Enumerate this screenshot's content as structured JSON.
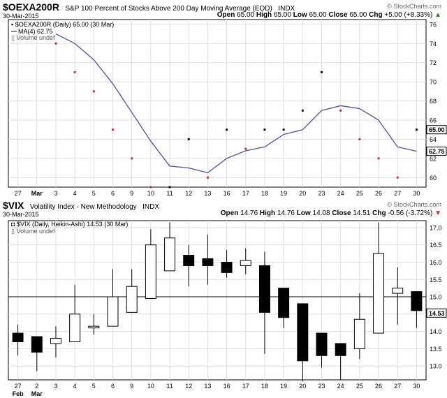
{
  "top": {
    "symbol": "$OEXA200R",
    "title": "S&P 100 Percent of Stocks Above 200 Day Moving Average (EOD)",
    "exchange": "INDX",
    "date": "30-Mar-2015",
    "watermark": "© StockCharts.com",
    "ohlc": {
      "open_label": "Open",
      "open": "65.00",
      "high_label": "High",
      "high": "65.00",
      "low_label": "Low",
      "low": "65.00",
      "close_label": "Close",
      "close": "65.00",
      "chg_label": "Chg",
      "chg": "+5.00 (+8.33%)",
      "chg_arrow": "▲"
    },
    "legend": {
      "series": "$OEXA200R (Daily) 65.00 (30 Mar)",
      "ma": "MA(4) 62.75",
      "volume": "Volume undef"
    },
    "price_tags": {
      "last": "65.00",
      "ma": "62.75"
    }
  },
  "bottom": {
    "symbol": "$VIX",
    "title": "Volatility Index - New Methodology",
    "exchange": "INDX",
    "date": "30-Mar-2015",
    "watermark": "© StockCharts.com",
    "ohlc": {
      "open_label": "Open",
      "open": "14.76",
      "high_label": "High",
      "high": "14.76",
      "low_label": "Low",
      "low": "14.08",
      "close_label": "Close",
      "close": "14.51",
      "chg_label": "Chg",
      "chg": "-0.56 (-3.72%)",
      "chg_arrow": "▼"
    },
    "legend": {
      "series": "$VIX (Daily, Heikin-Ashi) 14.53 (30 Mar)",
      "volume": "Volume undef"
    },
    "price_tags": {
      "last": "14.53"
    }
  },
  "colors": {
    "ma_line": "#5a5aa0",
    "dot_red": "#c03050",
    "dot_black": "#111111",
    "grid": "#d8d8d8",
    "tag_border": "#000000",
    "chg_up": "#2a8a2a",
    "chg_down": "#c0392b"
  },
  "chart_data": [
    {
      "type": "scatter",
      "title": "S&P 100 Percent of Stocks Above 200 Day Moving Average (EOD)",
      "x_tick_labels": [
        "27",
        "Mar",
        "3",
        "4",
        "5",
        "6",
        "9",
        "10",
        "11",
        "12",
        "13",
        "16",
        "17",
        "18",
        "19",
        "20",
        "23",
        "24",
        "25",
        "26",
        "27",
        "30"
      ],
      "y_ticks": [
        60,
        62,
        64,
        66,
        68,
        70,
        72,
        74,
        76
      ],
      "ylim": [
        59,
        76.5
      ],
      "grid": true,
      "series": [
        {
          "name": "$OEXA200R (Daily)",
          "points": [
            {
              "x": "3",
              "y": 74,
              "color": "red"
            },
            {
              "x": "4",
              "y": 71,
              "color": "red"
            },
            {
              "x": "5",
              "y": 69,
              "color": "red"
            },
            {
              "x": "6",
              "y": 65,
              "color": "red"
            },
            {
              "x": "9",
              "y": 62,
              "color": "red"
            },
            {
              "x": "10",
              "y": 59,
              "color": "red"
            },
            {
              "x": "11",
              "y": 59,
              "color": "black"
            },
            {
              "x": "12",
              "y": 64,
              "color": "black"
            },
            {
              "x": "13",
              "y": 60,
              "color": "red"
            },
            {
              "x": "16",
              "y": 65,
              "color": "black"
            },
            {
              "x": "17",
              "y": 63,
              "color": "red"
            },
            {
              "x": "18",
              "y": 65,
              "color": "black"
            },
            {
              "x": "19",
              "y": 65,
              "color": "black"
            },
            {
              "x": "20",
              "y": 67,
              "color": "black"
            },
            {
              "x": "23",
              "y": 71,
              "color": "black"
            },
            {
              "x": "24",
              "y": 67,
              "color": "red"
            },
            {
              "x": "25",
              "y": 64,
              "color": "red"
            },
            {
              "x": "26",
              "y": 62,
              "color": "red"
            },
            {
              "x": "27",
              "y": 60,
              "color": "red"
            },
            {
              "x": "30",
              "y": 65,
              "color": "black"
            }
          ]
        },
        {
          "name": "MA(4)",
          "type": "line",
          "x": [
            "3",
            "4",
            "5",
            "6",
            "9",
            "10",
            "11",
            "12",
            "13",
            "16",
            "17",
            "18",
            "19",
            "20",
            "23",
            "24",
            "25",
            "26",
            "27",
            "30"
          ],
          "values": [
            75,
            74,
            72.3,
            69.8,
            66.8,
            63.8,
            61.2,
            61.0,
            60.5,
            62.0,
            62.8,
            63.2,
            64.5,
            65.0,
            67.0,
            67.5,
            67.2,
            66.0,
            63.2,
            62.75
          ]
        }
      ]
    },
    {
      "type": "candlestick",
      "title": "Volatility Index - New Methodology",
      "x_tick_labels": [
        "27",
        "2",
        "3",
        "4",
        "5",
        "6",
        "9",
        "10",
        "11",
        "12",
        "13",
        "16",
        "17",
        "18",
        "19",
        "20",
        "23",
        "24",
        "25",
        "26",
        "27",
        "30"
      ],
      "x_month_labels": [
        "Feb",
        "Mar"
      ],
      "y_ticks": [
        13.0,
        13.5,
        14.0,
        14.5,
        15.0,
        15.5,
        16.0,
        16.5,
        17.0
      ],
      "ylim": [
        12.6,
        17.2
      ],
      "reference_line": 15.0,
      "grid": true,
      "series": [
        {
          "name": "$VIX (Daily, Heikin-Ashi)",
          "candles": [
            {
              "x": "27",
              "open": 13.95,
              "high": 14.2,
              "low": 13.3,
              "close": 13.7
            },
            {
              "x": "2",
              "open": 13.85,
              "high": 13.85,
              "low": 12.85,
              "close": 13.4
            },
            {
              "x": "3",
              "open": 13.65,
              "high": 14.15,
              "low": 13.25,
              "close": 13.8
            },
            {
              "x": "4",
              "open": 13.7,
              "high": 15.35,
              "low": 13.7,
              "close": 14.5
            },
            {
              "x": "5",
              "open": 14.1,
              "high": 14.5,
              "low": 13.9,
              "close": 14.15
            },
            {
              "x": "6",
              "open": 14.15,
              "high": 15.8,
              "low": 14.15,
              "close": 15.0
            },
            {
              "x": "9",
              "open": 14.55,
              "high": 15.8,
              "low": 14.55,
              "close": 15.3
            },
            {
              "x": "10",
              "open": 14.95,
              "high": 16.95,
              "low": 14.95,
              "close": 16.5
            },
            {
              "x": "11",
              "open": 15.75,
              "high": 17.15,
              "low": 15.75,
              "close": 16.7
            },
            {
              "x": "12",
              "open": 16.2,
              "high": 16.5,
              "low": 15.3,
              "close": 15.9
            },
            {
              "x": "13",
              "open": 16.1,
              "high": 16.8,
              "low": 15.35,
              "close": 15.9
            },
            {
              "x": "16",
              "open": 16.0,
              "high": 16.35,
              "low": 15.55,
              "close": 15.7
            },
            {
              "x": "17",
              "open": 15.9,
              "high": 16.4,
              "low": 15.65,
              "close": 16.05
            },
            {
              "x": "18",
              "open": 15.9,
              "high": 16.3,
              "low": 13.35,
              "close": 14.55
            },
            {
              "x": "19",
              "open": 15.25,
              "high": 15.25,
              "low": 14.1,
              "close": 14.4
            },
            {
              "x": "20",
              "open": 14.8,
              "high": 14.8,
              "low": 12.55,
              "close": 13.15
            },
            {
              "x": "23",
              "open": 13.95,
              "high": 13.95,
              "low": 12.95,
              "close": 13.3
            },
            {
              "x": "24",
              "open": 13.65,
              "high": 13.65,
              "low": 12.6,
              "close": 13.3
            },
            {
              "x": "25",
              "open": 13.5,
              "high": 15.1,
              "low": 13.2,
              "close": 14.35
            },
            {
              "x": "26",
              "open": 13.95,
              "high": 17.15,
              "low": 13.95,
              "close": 16.25
            },
            {
              "x": "27",
              "open": 15.1,
              "high": 15.85,
              "low": 14.2,
              "close": 15.25
            },
            {
              "x": "30",
              "open": 15.15,
              "high": 15.15,
              "low": 14.1,
              "close": 14.6
            }
          ]
        }
      ]
    }
  ]
}
